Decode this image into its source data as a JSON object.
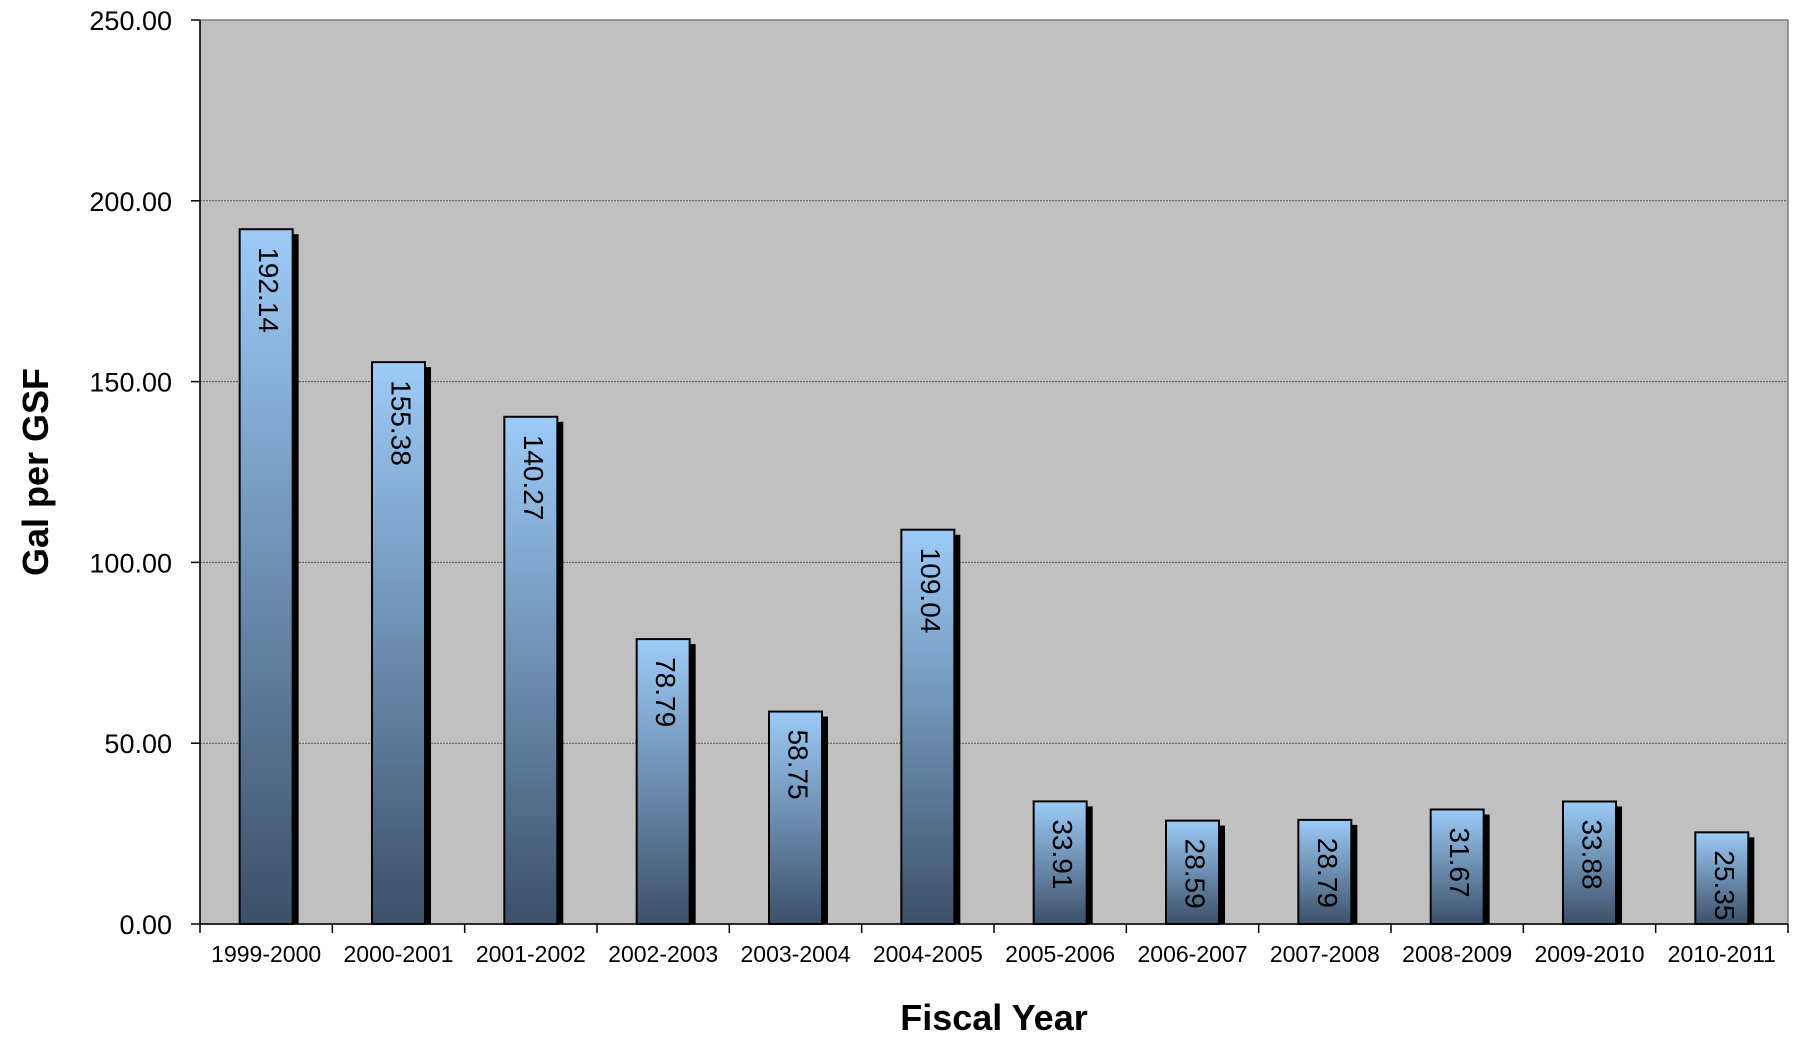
{
  "chart_data": {
    "type": "bar",
    "title": "",
    "xlabel": "Fiscal Year",
    "ylabel": "Gal per GSF",
    "ylim": [
      0,
      250
    ],
    "yticks": [
      0,
      50,
      100,
      150,
      200,
      250
    ],
    "ytick_labels": [
      "0.00",
      "50.00",
      "100.00",
      "150.00",
      "200.00",
      "250.00"
    ],
    "grid": true,
    "legend": "none",
    "categories": [
      "1999-2000",
      "2000-2001",
      "2001-2002",
      "2002-2003",
      "2003-2004",
      "2004-2005",
      "2005-2006",
      "2006-2007",
      "2007-2008",
      "2008-2009",
      "2009-2010",
      "2010-2011"
    ],
    "values": [
      192.14,
      155.38,
      140.27,
      78.79,
      58.75,
      109.04,
      33.91,
      28.59,
      28.79,
      31.67,
      33.88,
      25.35
    ],
    "value_labels": [
      "192.14",
      "155.38",
      "140.27",
      "78.79",
      "58.75",
      "109.04",
      "33.91",
      "28.59",
      "28.79",
      "31.67",
      "33.88",
      "25.35"
    ],
    "colors": {
      "plot_background": "#c0c0c0",
      "bar_top": "#9ccbf8",
      "bar_bottom": "#3c5068",
      "bar_shadow": "#000000",
      "gridline": "#555555"
    }
  }
}
